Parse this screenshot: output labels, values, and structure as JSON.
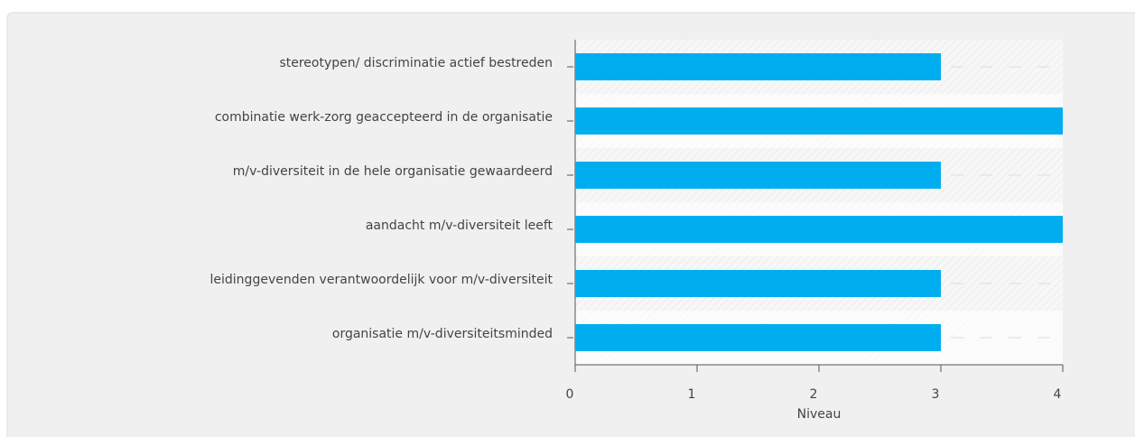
{
  "chart_data": {
    "type": "bar",
    "orientation": "horizontal",
    "categories": [
      "stereotypen/ discriminatie actief bestreden",
      "combinatie werk-zorg geaccepteerd in de organisatie",
      "m/v-diversiteit in de hele organisatie gewaardeerd",
      "aandacht m/v-diversiteit leeft",
      "leidinggevenden verantwoordelijk voor m/v-diversiteit",
      "organisatie m/v-diversiteitsminded"
    ],
    "values": [
      3,
      4,
      3,
      4,
      3,
      3
    ],
    "color": "#00aeef",
    "xlabel": "Niveau",
    "xlim": [
      0,
      4
    ],
    "xticks": [
      0,
      1,
      2,
      3,
      4
    ]
  }
}
